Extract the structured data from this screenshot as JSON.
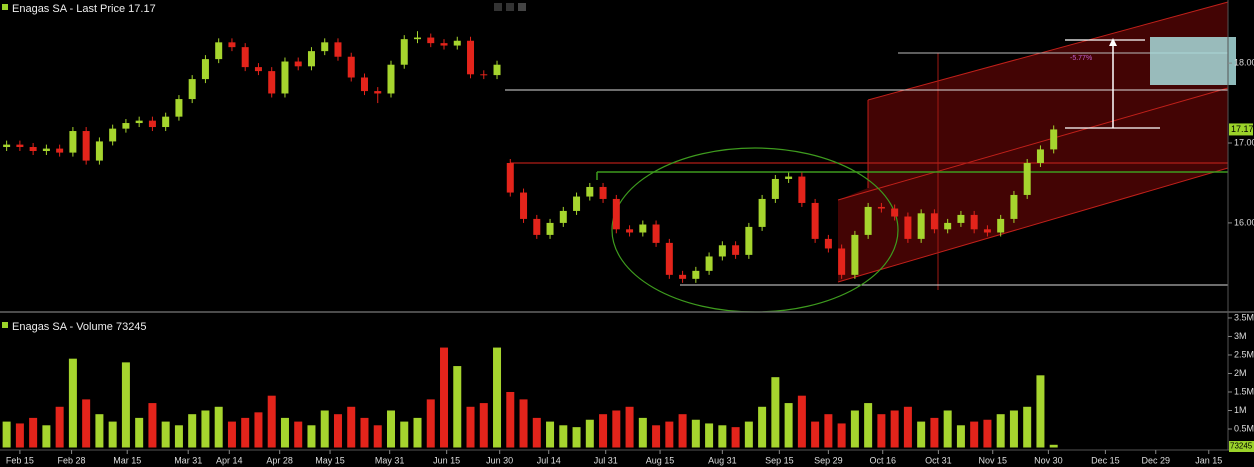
{
  "chart_data": [
    {
      "type": "candlestick",
      "title": "Enagas SA - Last Price 17.17",
      "annotations": [
        "-5.77%"
      ],
      "up_color": "#a6d52e",
      "down_color": "#e3241b",
      "xlim": [
        -0.5,
        92
      ],
      "ylim": [
        14.91,
        18.79
      ],
      "yticks": [
        {
          "value": 16,
          "label": "16.00"
        },
        {
          "value": 17,
          "label": "17.00"
        },
        {
          "value": 18,
          "label": "18.00"
        }
      ],
      "open": [
        16.95,
        16.98,
        16.95,
        16.9,
        16.93,
        16.88,
        17.15,
        16.78,
        17.02,
        17.18,
        17.25,
        17.28,
        17.2,
        17.33,
        17.55,
        17.8,
        18.05,
        18.26,
        18.2,
        17.95,
        17.9,
        17.62,
        18.02,
        17.96,
        18.15,
        18.26,
        18.08,
        17.82,
        17.65,
        17.62,
        17.98,
        18.3,
        18.32,
        18.25,
        18.22,
        18.28,
        17.86,
        17.85,
        16.75,
        16.38,
        16.05,
        15.85,
        16.0,
        16.15,
        16.33,
        16.45,
        16.3,
        15.92,
        15.88,
        15.98,
        15.75,
        15.35,
        15.3,
        15.4,
        15.58,
        15.72,
        15.6,
        15.95,
        16.3,
        16.55,
        16.58,
        16.25,
        15.8,
        15.68,
        15.35,
        15.85,
        16.2,
        16.18,
        16.08,
        15.8,
        16.12,
        15.92,
        16.0,
        16.1,
        15.92,
        15.88,
        16.05,
        16.35,
        16.75,
        16.92
      ],
      "high": [
        17.03,
        17.03,
        17.0,
        16.98,
        16.98,
        17.2,
        17.2,
        17.07,
        17.23,
        17.3,
        17.33,
        17.33,
        17.38,
        17.6,
        17.85,
        18.1,
        18.31,
        18.31,
        18.25,
        18.0,
        17.95,
        18.07,
        18.07,
        18.2,
        18.31,
        18.31,
        18.13,
        17.87,
        17.7,
        18.03,
        18.35,
        18.4,
        18.37,
        18.3,
        18.33,
        18.33,
        17.91,
        18.03,
        16.8,
        16.43,
        16.1,
        16.05,
        16.2,
        16.38,
        16.5,
        16.5,
        16.35,
        15.97,
        16.03,
        16.03,
        15.8,
        15.4,
        15.45,
        15.63,
        15.77,
        15.77,
        16.0,
        16.35,
        16.6,
        16.63,
        16.63,
        16.3,
        15.85,
        15.73,
        15.9,
        16.25,
        16.25,
        16.23,
        16.13,
        16.17,
        16.17,
        16.05,
        16.15,
        16.15,
        15.97,
        16.1,
        16.4,
        16.8,
        16.97,
        17.22
      ],
      "low": [
        16.9,
        16.9,
        16.85,
        16.85,
        16.83,
        16.83,
        16.73,
        16.73,
        16.97,
        17.13,
        17.2,
        17.15,
        17.15,
        17.28,
        17.5,
        17.75,
        18.0,
        18.15,
        17.9,
        17.85,
        17.57,
        17.57,
        17.91,
        17.91,
        18.1,
        18.03,
        17.77,
        17.6,
        17.5,
        17.57,
        17.93,
        18.25,
        18.2,
        18.17,
        18.17,
        17.81,
        17.8,
        17.8,
        16.33,
        16.0,
        15.8,
        15.8,
        15.95,
        16.1,
        16.28,
        16.25,
        15.87,
        15.83,
        15.83,
        15.7,
        15.3,
        15.25,
        15.25,
        15.35,
        15.53,
        15.55,
        15.55,
        15.9,
        16.25,
        16.5,
        16.2,
        15.75,
        15.63,
        15.3,
        15.3,
        15.8,
        16.13,
        16.03,
        15.75,
        15.75,
        15.87,
        15.87,
        15.95,
        15.87,
        15.83,
        15.83,
        16.0,
        16.3,
        16.7,
        16.87
      ],
      "close": [
        16.98,
        16.95,
        16.9,
        16.93,
        16.88,
        17.15,
        16.78,
        17.02,
        17.18,
        17.25,
        17.28,
        17.2,
        17.33,
        17.55,
        17.8,
        18.05,
        18.26,
        18.2,
        17.95,
        17.9,
        17.62,
        18.02,
        17.96,
        18.15,
        18.26,
        18.08,
        17.82,
        17.65,
        17.62,
        17.98,
        18.3,
        18.32,
        18.25,
        18.22,
        18.28,
        17.86,
        17.85,
        17.98,
        16.38,
        16.05,
        15.85,
        16.0,
        16.15,
        16.33,
        16.45,
        16.3,
        15.92,
        15.88,
        15.98,
        15.75,
        15.35,
        15.3,
        15.4,
        15.58,
        15.72,
        15.6,
        15.95,
        16.3,
        16.55,
        16.58,
        16.25,
        15.8,
        15.68,
        15.35,
        15.85,
        16.2,
        16.18,
        16.08,
        15.8,
        16.12,
        15.92,
        16.0,
        16.1,
        15.92,
        15.88,
        16.05,
        16.35,
        16.75,
        16.92,
        17.17
      ]
    },
    {
      "type": "bar",
      "title": "Enagas SA - Volume 73245",
      "xlim": [
        -0.5,
        92
      ],
      "xticks": [
        {
          "value": 1.0,
          "label": "Feb 15"
        },
        {
          "value": 4.9,
          "label": "Feb 28"
        },
        {
          "value": 9.1,
          "label": "Mar 15"
        },
        {
          "value": 13.7,
          "label": "Mar 31"
        },
        {
          "value": 16.8,
          "label": "Apr 14"
        },
        {
          "value": 20.6,
          "label": "Apr 28"
        },
        {
          "value": 24.4,
          "label": "May 15"
        },
        {
          "value": 28.9,
          "label": "May 31"
        },
        {
          "value": 33.2,
          "label": "Jun 15"
        },
        {
          "value": 37.2,
          "label": "Jun 30"
        },
        {
          "value": 40.9,
          "label": "Jul 14"
        },
        {
          "value": 45.2,
          "label": "Jul 31"
        },
        {
          "value": 49.3,
          "label": "Aug 15"
        },
        {
          "value": 54.0,
          "label": "Aug 31"
        },
        {
          "value": 58.3,
          "label": "Sep 15"
        },
        {
          "value": 62.0,
          "label": "Sep 29"
        },
        {
          "value": 66.1,
          "label": "Oct 16"
        },
        {
          "value": 70.3,
          "label": "Oct 31"
        },
        {
          "value": 74.4,
          "label": "Nov 15"
        },
        {
          "value": 78.6,
          "label": "Nov 30"
        },
        {
          "value": 82.9,
          "label": "Dec 15"
        },
        {
          "value": 86.7,
          "label": "Dec 29"
        },
        {
          "value": 90.7,
          "label": "Jan 15"
        }
      ],
      "ylim": [
        0,
        3580000
      ],
      "yticks": [
        {
          "value": 500000,
          "label": "0.5M"
        },
        {
          "value": 1000000,
          "label": "1M"
        },
        {
          "value": 1500000,
          "label": "1.5M"
        },
        {
          "value": 2000000,
          "label": "2M"
        },
        {
          "value": 2500000,
          "label": "2.5M"
        },
        {
          "value": 3000000,
          "label": "3M"
        },
        {
          "value": 3500000,
          "label": "3.5M"
        }
      ],
      "values": [
        700000,
        650000,
        800000,
        600000,
        1100000,
        2400000,
        1300000,
        900000,
        700000,
        2300000,
        800000,
        1200000,
        700000,
        600000,
        900000,
        1000000,
        1100000,
        700000,
        800000,
        950000,
        1400000,
        800000,
        700000,
        600000,
        1000000,
        900000,
        1100000,
        800000,
        600000,
        1000000,
        700000,
        800000,
        1300000,
        2700000,
        2200000,
        1100000,
        1200000,
        2700000,
        1500000,
        1300000,
        800000,
        700000,
        600000,
        550000,
        750000,
        900000,
        1000000,
        1100000,
        800000,
        600000,
        700000,
        900000,
        750000,
        650000,
        600000,
        550000,
        700000,
        1100000,
        1900000,
        1200000,
        1400000,
        700000,
        900000,
        650000,
        1000000,
        1200000,
        900000,
        1000000,
        1100000,
        700000,
        800000,
        1000000,
        600000,
        700000,
        750000,
        900000,
        1000000,
        1100000,
        1950000,
        73245
      ]
    }
  ]
}
